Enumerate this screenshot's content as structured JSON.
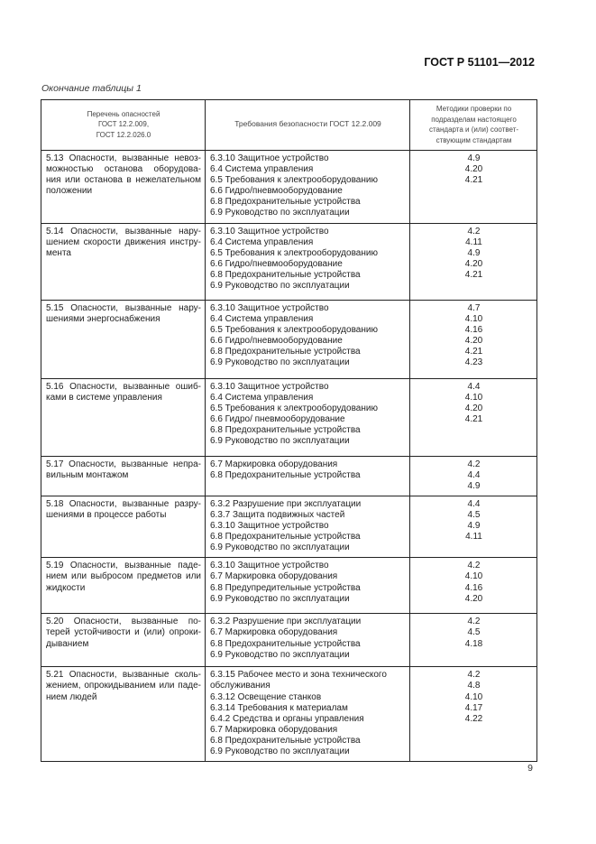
{
  "header": {
    "doc_id": "ГОСТ Р 51101—2012",
    "caption": "Окончание таблицы 1"
  },
  "table": {
    "columns": [
      "Перечень опасностей\nГОСТ 12.2.009,\nГОСТ 12.2.026.0",
      "Требования безопасности ГОСТ 12.2.009",
      "Методики проверки по\nподразделам настоящего\nстандарта и (или) соответ-\nствующим стандартам"
    ],
    "rows": [
      {
        "hazard": [
          "5.13 Опасности, вызванные невоз-",
          "можностью останова оборудова-",
          "ния или останова в нежелательном",
          "положении"
        ],
        "requirements": [
          "6.3.10 Защитное устройство",
          "6.4 Система управления",
          "6.5 Требования к электрооборудованию",
          "6.6 Гидро/пневмооборудование",
          "6.8 Предохранительные устройства",
          "6.9 Руководство по эксплуатации"
        ],
        "methods": [
          "4.9",
          "4.20",
          "4.21"
        ],
        "height": 80
      },
      {
        "hazard": [
          "5.14 Опасности, вызванные нару-",
          "шением скорости движения инстру-",
          "мента"
        ],
        "requirements": [
          "6.3.10 Защитное устройство",
          "6.4 Система управления",
          "6.5 Требования к электрооборудованию",
          "6.6 Гидро/пневмооборудование",
          "6.8 Предохранительные устройства",
          "6.9 Руководство по эксплуатации"
        ],
        "methods": [
          "4.2",
          "4.11",
          "4.9",
          "4.20",
          "4.21"
        ],
        "height": 85
      },
      {
        "hazard": [
          "5.15 Опасности, вызванные нару-",
          "шениями энергоснабжения"
        ],
        "requirements": [
          "6.3.10 Защитное устройство",
          "6.4 Система управления",
          "6.5 Требования к электрооборудованию",
          "6.6 Гидро/пневмооборудование",
          "6.8 Предохранительные устройства",
          "6.9 Руководство по эксплуатации"
        ],
        "methods": [
          "4.7",
          "4.10",
          "4.16",
          "4.20",
          "4.21",
          "4.23"
        ],
        "height": 87
      },
      {
        "hazard": [
          "5.16 Опасности, вызванные ошиб-",
          "ками в системе управления"
        ],
        "requirements": [
          "6.3.10 Защитное устройство",
          "6.4 Система управления",
          "6.5 Требования к электрооборудованию",
          "6.6 Гидро/ пневмооборудование",
          "6.8 Предохранительные устройства",
          "6.9 Руководство по эксплуатации"
        ],
        "methods": [
          "4.4",
          "4.10",
          "4.20",
          "4.21"
        ],
        "height": 86
      },
      {
        "hazard": [
          "5.17 Опасности, вызванные непра-",
          "вильным монтажом"
        ],
        "requirements": [
          "6.7 Маркировка оборудования",
          "6.8 Предохранительные устройства"
        ],
        "methods": [
          "4.2",
          "4.4",
          "4.9"
        ],
        "height": 41
      },
      {
        "hazard": [
          "5.18 Опасности, вызванные разру-",
          "шениями в процессе работы"
        ],
        "requirements": [
          "6.3.2 Разрушение при эксплуатации",
          "6.3.7 Защита подвижных частей",
          "6.3.10 Защитное устройство",
          "6.8 Предохранительные устройства",
          "6.9 Руководство по эксплуатации"
        ],
        "methods": [
          "4.4",
          "4.5",
          "4.9",
          "4.11"
        ],
        "height": 67
      },
      {
        "hazard": [
          "5.19 Опасности, вызванные паде-",
          "нием или выбросом предметов или",
          "жидкости"
        ],
        "requirements": [
          "6.3.10 Защитное устройство",
          "6.7 Маркировка оборудования",
          "6.8 Предупредительные устройства",
          "6.9 Руководство по эксплуатации"
        ],
        "methods": [
          "4.2",
          "4.10",
          "4.16",
          "4.20"
        ],
        "height": 62
      },
      {
        "hazard": [
          "5.20 Опасности, вызванные по-",
          "терей устойчивости и (или) опроки-",
          "дыванием"
        ],
        "requirements": [
          "6.3.2 Разрушение при эксплуатации",
          "6.7 Маркировка оборудования",
          "6.8 Предохранительные устройства",
          "6.9 Руководство по эксплуатации"
        ],
        "methods": [
          "4.2",
          "4.5",
          "4.18"
        ],
        "height": 59
      },
      {
        "hazard": [
          "5.21 Опасности, вызванные сколь-",
          "жением, опрокидыванием или паде-",
          "нием людей"
        ],
        "requirements": [
          "6.3.15 Рабочее место и зона технического",
          "обслуживания",
          "6.3.12 Освещение станков",
          "6.3.14 Требования к материалам",
          "6.4.2 Средства и органы управления",
          "6.7 Маркировка оборудования",
          "6.8 Предохранительные устройства",
          "6.9 Руководство по эксплуатации"
        ],
        "methods": [
          "4.2",
          "4.8",
          "4.10",
          "4.17",
          "4.22"
        ],
        "height": 102
      }
    ]
  },
  "footer": {
    "page_number": "9"
  }
}
